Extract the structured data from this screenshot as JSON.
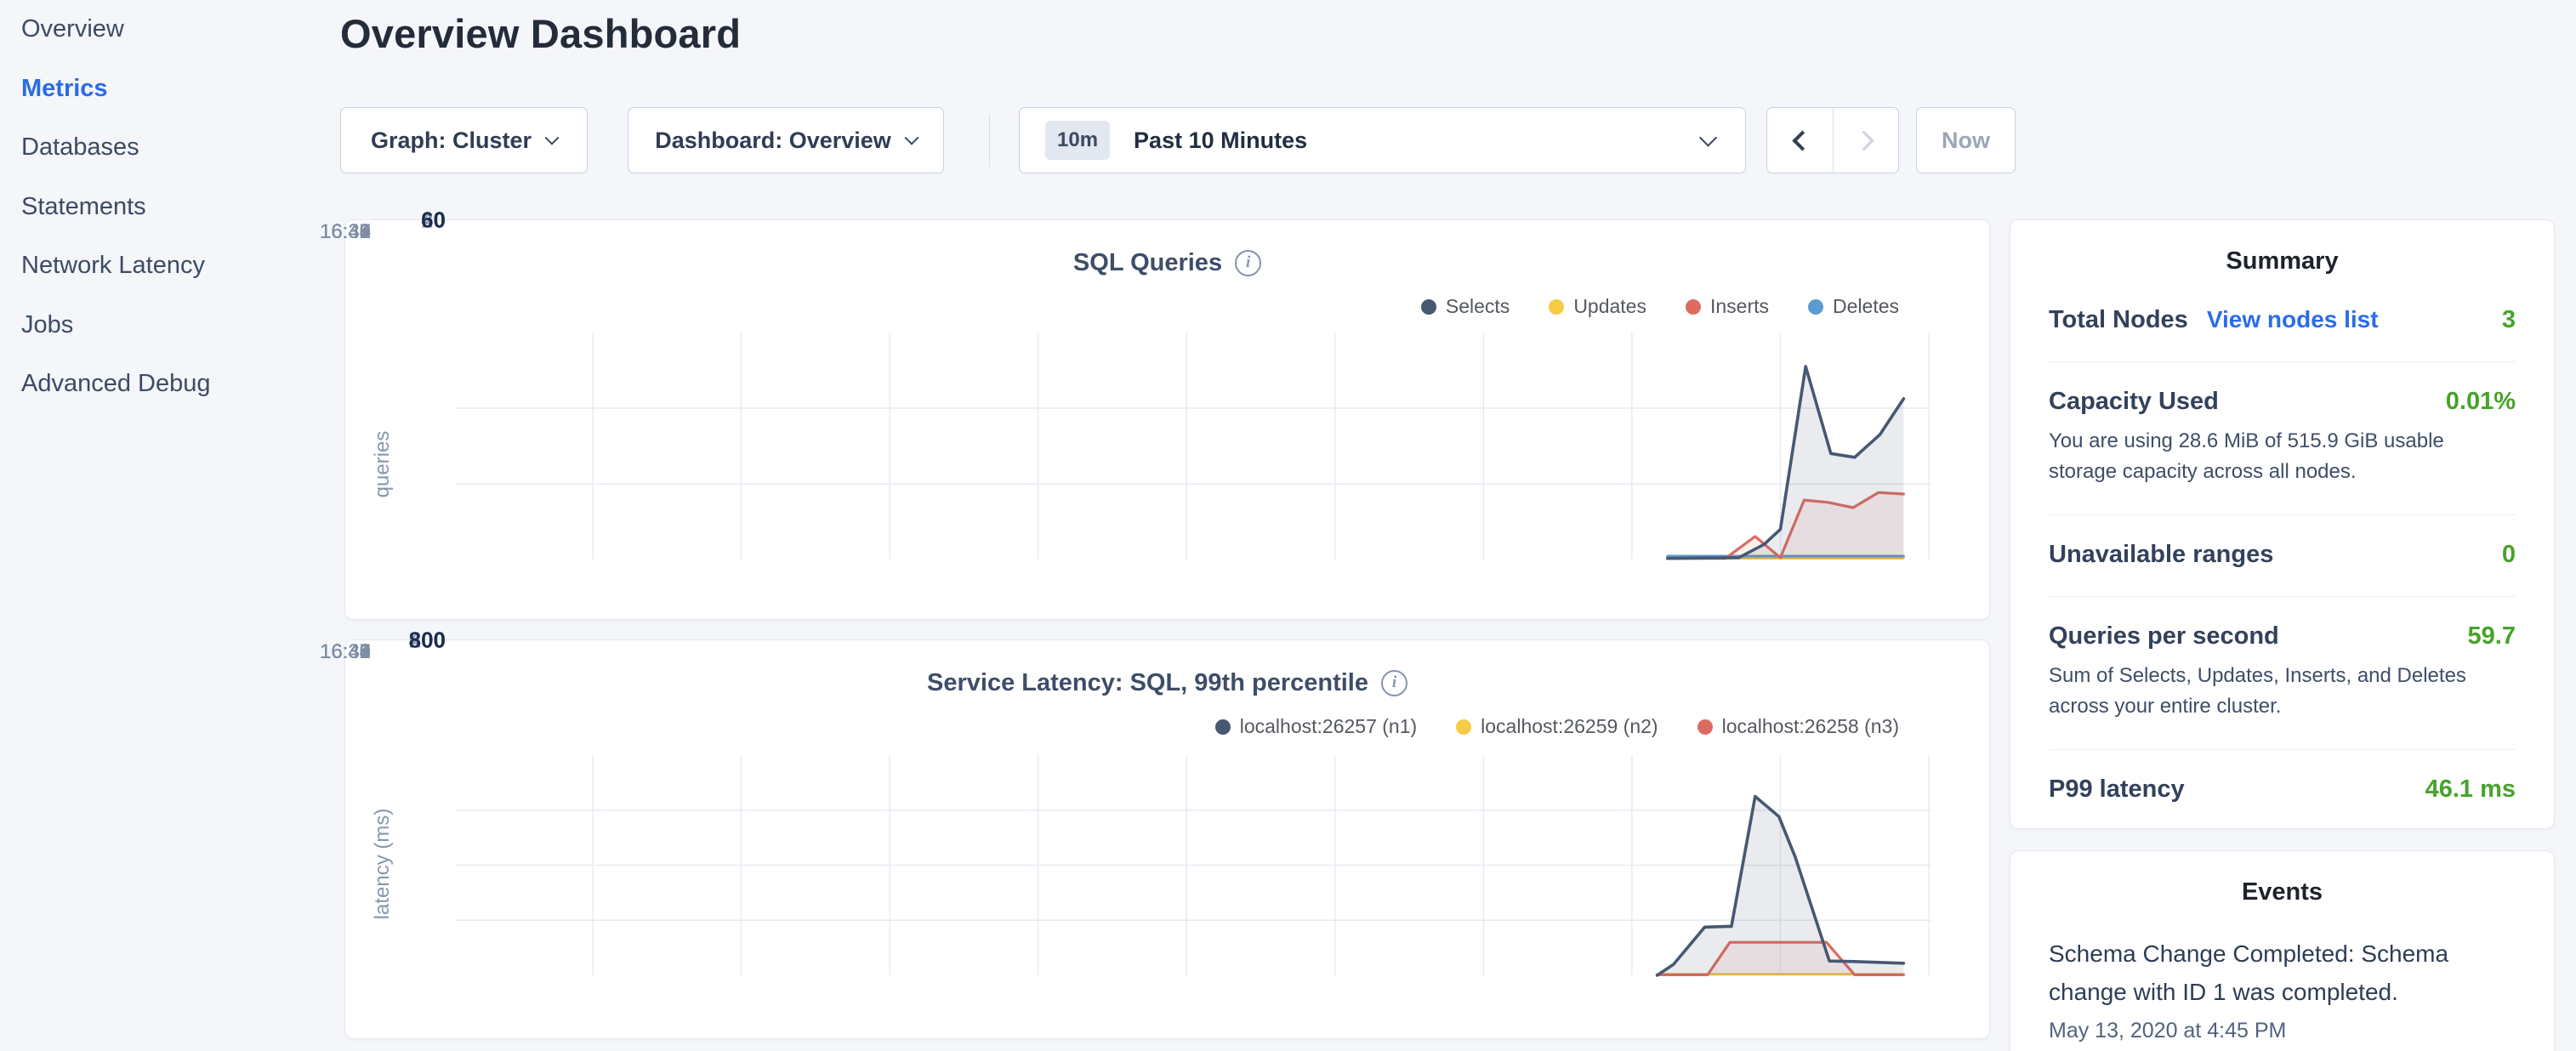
{
  "palette": {
    "accent_blue": "#2b6ce6",
    "status_green": "#47a32a",
    "series_navy": "#475872",
    "series_yellow": "#f6cb45",
    "series_red": "#dd6b61",
    "series_blue": "#5c9bd1"
  },
  "sidebar": {
    "items": [
      {
        "label": "Overview",
        "active": false
      },
      {
        "label": "Metrics",
        "active": true
      },
      {
        "label": "Databases",
        "active": false
      },
      {
        "label": "Statements",
        "active": false
      },
      {
        "label": "Network Latency",
        "active": false
      },
      {
        "label": "Jobs",
        "active": false
      },
      {
        "label": "Advanced Debug",
        "active": false
      }
    ]
  },
  "header": {
    "title": "Overview Dashboard"
  },
  "controls": {
    "graph_dropdown": "Graph: Cluster",
    "dashboard_dropdown": "Dashboard: Overview",
    "range_badge": "10m",
    "range_label": "Past 10 Minutes",
    "now_label": "Now"
  },
  "chart_data": [
    {
      "type": "area",
      "title": "SQL Queries",
      "ylabel": "queries",
      "ylim": [
        0,
        60
      ],
      "yticks": [
        0,
        20,
        40,
        60
      ],
      "x_ticks": [
        "16:38",
        "16:39",
        "16:40",
        "16:41",
        "16:42",
        "16:43",
        "16:44",
        "16:45",
        "16:46",
        "16:47"
      ],
      "legend_position": "top-right",
      "grid": true,
      "legend": [
        {
          "label": "Selects",
          "color": "#475872"
        },
        {
          "label": "Updates",
          "color": "#f6cb45"
        },
        {
          "label": "Inserts",
          "color": "#dd6b61"
        },
        {
          "label": "Deletes",
          "color": "#5c9bd1"
        }
      ],
      "series": [
        {
          "name": "Updates",
          "color": "#f6cb45",
          "width": 3,
          "points": [
            [
              7.24,
              0.4
            ],
            [
              8.83,
              0.4
            ]
          ]
        },
        {
          "name": "Deletes",
          "color": "#5c9bd1",
          "width": 3,
          "points": [
            [
              7.24,
              0.9
            ],
            [
              8.83,
              0.9
            ]
          ]
        },
        {
          "name": "Inserts",
          "color": "#dd6b61",
          "width": 3.2,
          "fill": "rgba(221,107,97,0.10)",
          "points": [
            [
              7.24,
              0.3
            ],
            [
              7.63,
              0.3
            ],
            [
              7.83,
              6.1
            ],
            [
              8.0,
              0.5
            ],
            [
              8.16,
              15.7
            ],
            [
              8.32,
              15.1
            ],
            [
              8.49,
              13.7
            ],
            [
              8.66,
              17.7
            ],
            [
              8.83,
              17.3
            ]
          ]
        },
        {
          "name": "Selects",
          "color": "#475872",
          "width": 3.6,
          "fill": "rgba(71,88,114,0.12)",
          "points": [
            [
              7.24,
              0.3
            ],
            [
              7.72,
              0.5
            ],
            [
              7.89,
              4
            ],
            [
              8.0,
              8
            ],
            [
              8.17,
              51
            ],
            [
              8.34,
              28
            ],
            [
              8.5,
              27
            ],
            [
              8.67,
              33
            ],
            [
              8.83,
              42.5
            ]
          ]
        }
      ]
    },
    {
      "type": "area",
      "title": "Service Latency: SQL, 99th percentile",
      "ylabel": "latency (ms)",
      "ylim": [
        0,
        800
      ],
      "yticks": [
        0,
        200,
        400,
        600,
        800
      ],
      "x_ticks": [
        "16:38",
        "16:39",
        "16:40",
        "16:41",
        "16:42",
        "16:43",
        "16:44",
        "16:45",
        "16:46",
        "16:47"
      ],
      "legend_position": "top-right",
      "grid": true,
      "legend": [
        {
          "label": "localhost:26257 (n1)",
          "color": "#475872"
        },
        {
          "label": "localhost:26259 (n2)",
          "color": "#f6cb45"
        },
        {
          "label": "localhost:26258 (n3)",
          "color": "#dd6b61"
        }
      ],
      "series": [
        {
          "name": "localhost:26259 (n2)",
          "color": "#f6cb45",
          "width": 3,
          "points": [
            [
              7.17,
              4
            ],
            [
              8.83,
              4
            ]
          ]
        },
        {
          "name": "localhost:26258 (n3)",
          "color": "#dd6b61",
          "width": 3.2,
          "fill": "rgba(221,107,97,0.10)",
          "points": [
            [
              7.17,
              2
            ],
            [
              7.51,
              2
            ],
            [
              7.66,
              120
            ],
            [
              8.31,
              120
            ],
            [
              8.5,
              2
            ],
            [
              8.83,
              2
            ]
          ]
        },
        {
          "name": "localhost:26257 (n1)",
          "color": "#475872",
          "width": 3.6,
          "fill": "rgba(71,88,114,0.12)",
          "points": [
            [
              7.17,
              0
            ],
            [
              7.28,
              40
            ],
            [
              7.49,
              175
            ],
            [
              7.67,
              178
            ],
            [
              7.83,
              650
            ],
            [
              7.99,
              577
            ],
            [
              8.1,
              430
            ],
            [
              8.33,
              52
            ],
            [
              8.5,
              50
            ],
            [
              8.83,
              44
            ]
          ]
        }
      ]
    }
  ],
  "summary": {
    "title": "Summary",
    "rows": [
      {
        "label": "Total Nodes",
        "link": "View nodes list",
        "value": "3"
      },
      {
        "label": "Capacity Used",
        "value": "0.01%",
        "desc": "You are using 28.6 MiB of 515.9 GiB usable storage capacity across all nodes."
      },
      {
        "label": "Unavailable ranges",
        "value": "0"
      },
      {
        "label": "Queries per second",
        "value": "59.7",
        "desc": "Sum of Selects, Updates, Inserts, and Deletes across your entire cluster."
      },
      {
        "label": "P99 latency",
        "value": "46.1 ms"
      }
    ]
  },
  "events": {
    "title": "Events",
    "items": [
      {
        "message": "Schema Change Completed: Schema change with ID 1 was completed.",
        "timestamp": "May 13, 2020 at 4:45 PM"
      }
    ]
  }
}
